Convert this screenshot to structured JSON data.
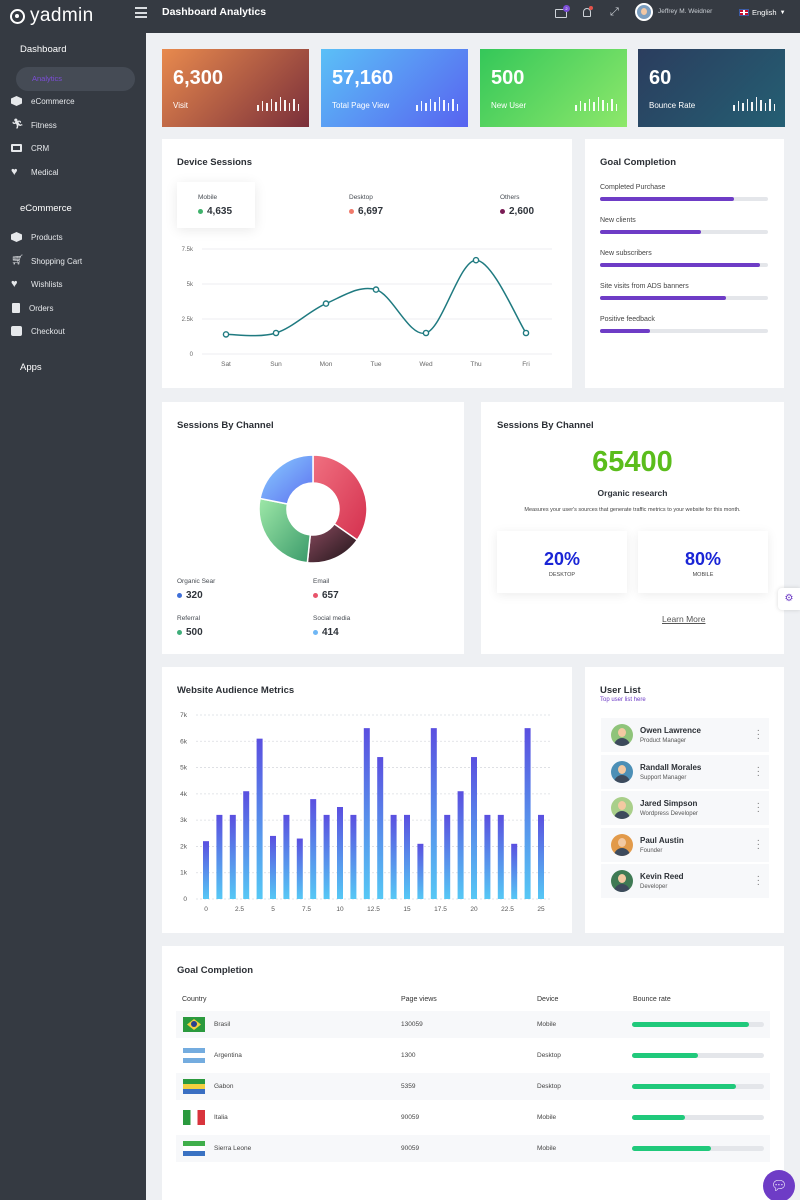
{
  "app": {
    "name": "yadmin",
    "page_title": "Dashboard Analytics"
  },
  "topbar": {
    "mail_count": "2",
    "user_name": "Jeffrey M. Weidner",
    "language": "English"
  },
  "sidebar": {
    "sections": [
      {
        "title": "Dashboard",
        "items": [
          {
            "label": "Analytics",
            "icon": "analytics-icon",
            "active": true
          },
          {
            "label": "eCommerce",
            "icon": "cube-icon"
          },
          {
            "label": "Fitness",
            "icon": "running-icon"
          },
          {
            "label": "CRM",
            "icon": "monitor-icon"
          },
          {
            "label": "Medical",
            "icon": "heartbeat-icon"
          }
        ]
      },
      {
        "title": "eCommerce",
        "items": [
          {
            "label": "Products",
            "icon": "cube-icon"
          },
          {
            "label": "Shopping Cart",
            "icon": "cart-icon"
          },
          {
            "label": "Wishlists",
            "icon": "heart-icon"
          },
          {
            "label": "Orders",
            "icon": "clipboard-icon"
          },
          {
            "label": "Checkout",
            "icon": "check-icon"
          }
        ]
      },
      {
        "title": "Apps",
        "items": []
      }
    ]
  },
  "stats": [
    {
      "value": "6,300",
      "label": "Visit",
      "colors": [
        "#e88a4e",
        "#7a2f3a"
      ]
    },
    {
      "value": "57,160",
      "label": "Total Page View",
      "colors": [
        "#5bc0f7",
        "#5863f0"
      ]
    },
    {
      "value": "500",
      "label": "New User",
      "colors": [
        "#34c759",
        "#8ee86b"
      ]
    },
    {
      "value": "60",
      "label": "Bounce Rate",
      "colors": [
        "#2b3d5e",
        "#245f73"
      ]
    }
  ],
  "device_sessions": {
    "title": "Device Sessions",
    "legend": [
      {
        "name": "Mobile",
        "value": "4,635",
        "color": "#3fb26b"
      },
      {
        "name": "Desktop",
        "value": "6,697",
        "color": "#f07a6b"
      },
      {
        "name": "Others",
        "value": "2,600",
        "color": "#7a1c55"
      }
    ]
  },
  "chart_data": [
    {
      "type": "line",
      "categories": [
        "Sat",
        "Sun",
        "Mon",
        "Tue",
        "Wed",
        "Thu",
        "Fri"
      ],
      "values": [
        1400,
        1500,
        3600,
        4600,
        1500,
        6700,
        1500
      ],
      "ylim": [
        0,
        7500
      ],
      "yticks": [
        "0",
        "2.5k",
        "5k",
        "7.5k"
      ],
      "grid": true,
      "color": "#1f7a80"
    },
    {
      "type": "pie",
      "slices": [
        {
          "name": "Organic Sear",
          "value": 320,
          "color": "#3f6fd8"
        },
        {
          "name": "Email",
          "value": 657,
          "color": "#e8546b"
        },
        {
          "name": "Referral",
          "value": 500,
          "color": "#3fae7a"
        },
        {
          "name": "Social media",
          "value": 414,
          "color": "#6fb7f5"
        }
      ]
    },
    {
      "type": "bar",
      "categories": [
        "0",
        "1",
        "2",
        "3",
        "4",
        "5",
        "6",
        "7",
        "8",
        "9",
        "10",
        "11",
        "12",
        "13",
        "14",
        "15",
        "16",
        "17",
        "18",
        "19",
        "20",
        "21",
        "22",
        "23",
        "24",
        "25"
      ],
      "xticks": [
        "0",
        "2.5",
        "5",
        "7.5",
        "10",
        "12.5",
        "15",
        "17.5",
        "20",
        "22.5",
        "25"
      ],
      "values": [
        2200,
        3200,
        3200,
        4100,
        6100,
        2400,
        3200,
        2300,
        3800,
        3200,
        3500,
        3200,
        6500,
        5400,
        3200,
        3200,
        2100,
        6500,
        3200,
        4100,
        5400,
        3200,
        3200,
        2100,
        6500,
        3200
      ],
      "ylim": [
        0,
        7000
      ],
      "yticks": [
        "0",
        "1k",
        "2k",
        "3k",
        "4k",
        "5k",
        "6k",
        "7k"
      ],
      "grid": true
    }
  ],
  "goal_completion": {
    "title": "Goal Completion",
    "items": [
      {
        "label": "Completed Purchase",
        "progress": 0.8
      },
      {
        "label": "New clients",
        "progress": 0.6
      },
      {
        "label": "New subscribers",
        "progress": 0.95
      },
      {
        "label": "Site visits from ADS banners",
        "progress": 0.75
      },
      {
        "label": "Positive feedback",
        "progress": 0.3
      }
    ]
  },
  "sessions_channel_pie": {
    "title": "Sessions By Channel",
    "legend": [
      {
        "name": "Organic Sear",
        "value": "320",
        "color": "#3f6fd8"
      },
      {
        "name": "Email",
        "value": "657",
        "color": "#e8546b"
      },
      {
        "name": "Referral",
        "value": "500",
        "color": "#3fae7a"
      },
      {
        "name": "Social media",
        "value": "414",
        "color": "#6fb7f5"
      }
    ]
  },
  "sessions_channel_metric": {
    "title": "Sessions By Channel",
    "value": "65400",
    "subtitle": "Organic research",
    "description": "Measures your user's sources that generate traffic metrics to your website for this month.",
    "boxes": [
      {
        "pct": "20%",
        "label": "DESKTOP"
      },
      {
        "pct": "80%",
        "label": "MOBILE"
      }
    ],
    "link": "Learn More"
  },
  "audience": {
    "title": "Website Audience Metrics"
  },
  "user_list": {
    "title": "User List",
    "subtitle": "Top user list here",
    "users": [
      {
        "name": "Owen Lawrence",
        "role": "Product Manager",
        "color": "#8fc47a"
      },
      {
        "name": "Randall Morales",
        "role": "Support Manager",
        "color": "#4c8fb6"
      },
      {
        "name": "Jared Simpson",
        "role": "Wordpress Developer",
        "color": "#a9cf8a"
      },
      {
        "name": "Paul Austin",
        "role": "Founder",
        "color": "#e29a4a"
      },
      {
        "name": "Kevin Reed",
        "role": "Developer",
        "color": "#3f7a54"
      }
    ]
  },
  "goal_table": {
    "title": "Goal Completion",
    "headers": [
      "Country",
      "Page views",
      "Device",
      "Bounce rate"
    ],
    "rows": [
      {
        "country": "Brasil",
        "views": "130059",
        "device": "Mobile",
        "bounce": 0.89,
        "flag": "brazil-flag-icon"
      },
      {
        "country": "Argentina",
        "views": "1300",
        "device": "Desktop",
        "bounce": 0.5,
        "flag": "argentina-flag-icon"
      },
      {
        "country": "Gabon",
        "views": "5359",
        "device": "Desktop",
        "bounce": 0.79,
        "flag": "gabon-flag-icon"
      },
      {
        "country": "Italia",
        "views": "90059",
        "device": "Mobile",
        "bounce": 0.4,
        "flag": "italy-flag-icon"
      },
      {
        "country": "Sierra Leone",
        "views": "90059",
        "device": "Mobile",
        "bounce": 0.6,
        "flag": "sierra-leone-flag-icon"
      }
    ]
  }
}
